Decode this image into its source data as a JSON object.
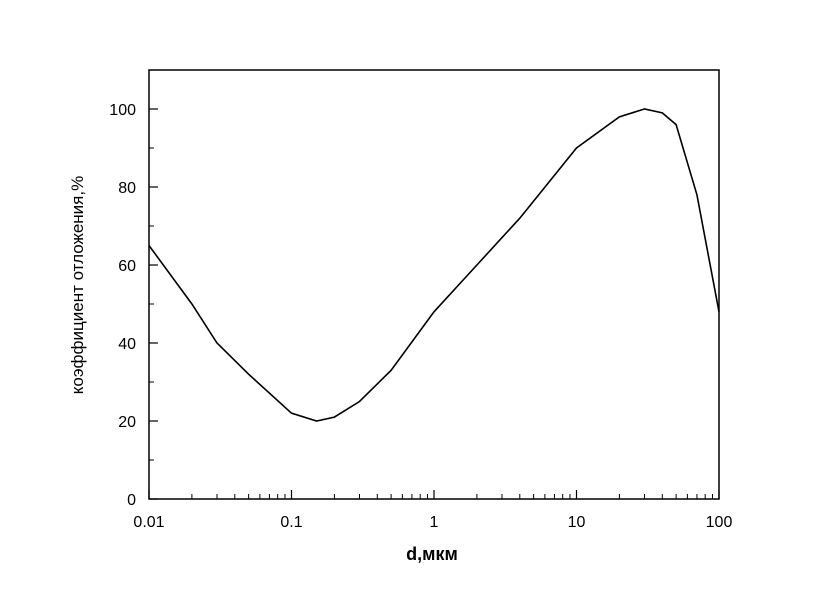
{
  "chart_data": {
    "type": "line",
    "title": "",
    "xlabel": "d,мкм",
    "ylabel": "коэффициент отложения,%",
    "x_scale": "log",
    "xlim": [
      0.01,
      100
    ],
    "ylim": [
      0,
      110
    ],
    "x_ticks": [
      0.01,
      0.1,
      1,
      10,
      100
    ],
    "x_tick_labels": [
      "0.01",
      "0.1",
      "1",
      "10",
      "100"
    ],
    "y_ticks": [
      0,
      20,
      40,
      60,
      80,
      100
    ],
    "y_tick_labels": [
      "0",
      "20",
      "40",
      "60",
      "80",
      "100"
    ],
    "grid": false,
    "legend": "none",
    "line_color": "#000000",
    "series": [
      {
        "x": [
          0.01,
          0.02,
          0.03,
          0.05,
          0.1,
          0.15,
          0.2,
          0.3,
          0.5,
          1,
          2,
          4,
          10,
          20,
          30,
          40,
          50,
          70,
          100
        ],
        "y": [
          65,
          50,
          40,
          32,
          22,
          20,
          21,
          25,
          33,
          48,
          60,
          72,
          90,
          98,
          100,
          99,
          96,
          78,
          48
        ]
      }
    ]
  }
}
